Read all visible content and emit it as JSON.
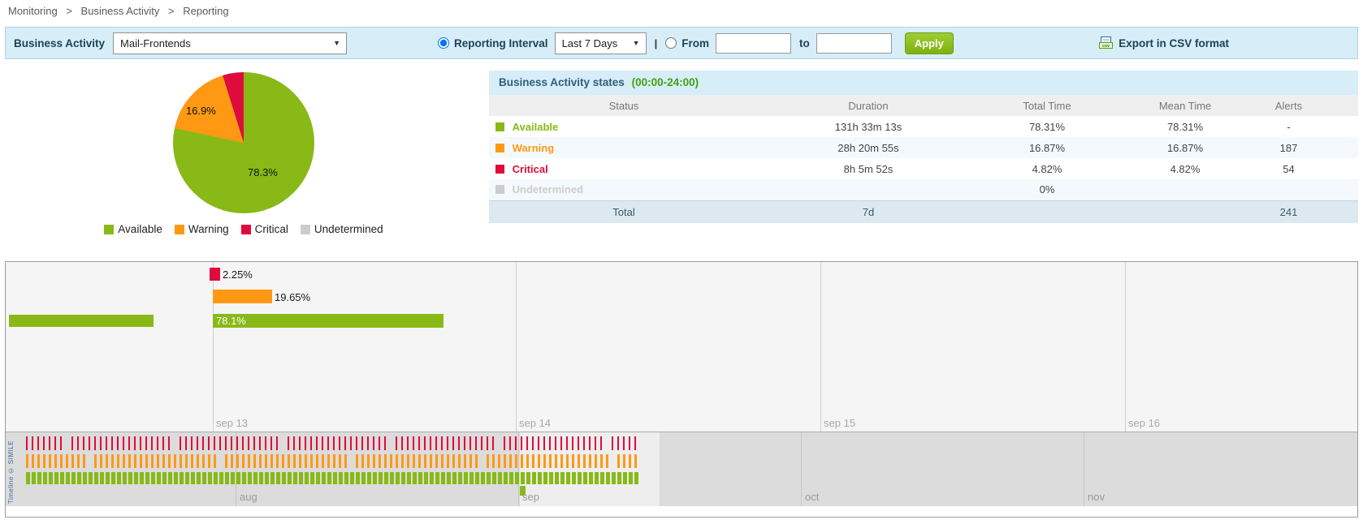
{
  "palette": {
    "available": "#88b917",
    "warning": "#ff9913",
    "critical": "#e00b3d",
    "undetermined": "#cccccc"
  },
  "breadcrumb": {
    "separator": ">",
    "items": [
      "Monitoring",
      "Business Activity",
      "Reporting"
    ]
  },
  "toolbar": {
    "business_activity_label": "Business Activity",
    "business_activity_value": "Mail-Frontends",
    "reporting_interval_label": "Reporting Interval",
    "reporting_interval_value": "Last 7 Days",
    "separator": "|",
    "from_label": "From",
    "from_value": "",
    "to_label": "to",
    "to_value": "",
    "apply_label": "Apply",
    "export_label": "Export in CSV format",
    "csv_icon_text": "csv"
  },
  "pie": {
    "slices": [
      {
        "key": "available",
        "label": "Available",
        "value": 78.3,
        "display": "78.3%"
      },
      {
        "key": "warning",
        "label": "Warning",
        "value": 16.9,
        "display": "16.9%"
      },
      {
        "key": "critical",
        "label": "Critical",
        "value": 4.8,
        "display": ""
      },
      {
        "key": "undetermined",
        "label": "Undetermined",
        "value": 0,
        "display": ""
      }
    ]
  },
  "states_table": {
    "title": "Business Activity states",
    "subtitle": "(00:00-24:00)",
    "columns": [
      "Status",
      "Duration",
      "Total Time",
      "Mean Time",
      "Alerts"
    ],
    "rows": [
      {
        "key": "available",
        "status": "Available",
        "duration": "131h 33m 13s",
        "total_time": "78.31%",
        "mean_time": "78.31%",
        "alerts": "-"
      },
      {
        "key": "warning",
        "status": "Warning",
        "duration": "28h 20m 55s",
        "total_time": "16.87%",
        "mean_time": "16.87%",
        "alerts": "187"
      },
      {
        "key": "critical",
        "status": "Critical",
        "duration": "8h 5m 52s",
        "total_time": "4.82%",
        "mean_time": "4.82%",
        "alerts": "54"
      },
      {
        "key": "undetermined",
        "status": "Undetermined",
        "duration": "",
        "total_time": "0%",
        "mean_time": "",
        "alerts": ""
      }
    ],
    "total": {
      "label": "Total",
      "duration": "7d",
      "alerts": "241"
    }
  },
  "timeline": {
    "bars": [
      {
        "key": "critical",
        "label": "2.25%"
      },
      {
        "key": "warning",
        "label": "19.65%"
      },
      {
        "key": "available",
        "label": "78.1%"
      }
    ],
    "date_labels": [
      "sep 13",
      "sep 14",
      "sep 15",
      "sep 16"
    ],
    "month_labels": [
      "aug",
      "sep",
      "oct",
      "nov"
    ],
    "credit": "Timeline © SIMILE",
    "overview_tick_columns": 108
  },
  "chart_data": [
    {
      "type": "pie",
      "title": "",
      "labels": [
        "Available",
        "Warning",
        "Critical",
        "Undetermined"
      ],
      "values": [
        78.3,
        16.9,
        4.8,
        0
      ],
      "colors": [
        "#88b917",
        "#ff9913",
        "#e00b3d",
        "#cccccc"
      ],
      "annotations": [
        "78.3%",
        "16.9%"
      ],
      "legend_position": "bottom"
    },
    {
      "type": "bar",
      "title": "",
      "categories": [
        "Critical",
        "Warning",
        "Available"
      ],
      "values": [
        2.25,
        19.65,
        78.1
      ],
      "colors": [
        "#e00b3d",
        "#ff9913",
        "#88b917"
      ],
      "x_ticks": [
        "sep 13",
        "sep 14",
        "sep 15",
        "sep 16"
      ],
      "overview_months": [
        "aug",
        "sep",
        "oct",
        "nov"
      ]
    }
  ]
}
